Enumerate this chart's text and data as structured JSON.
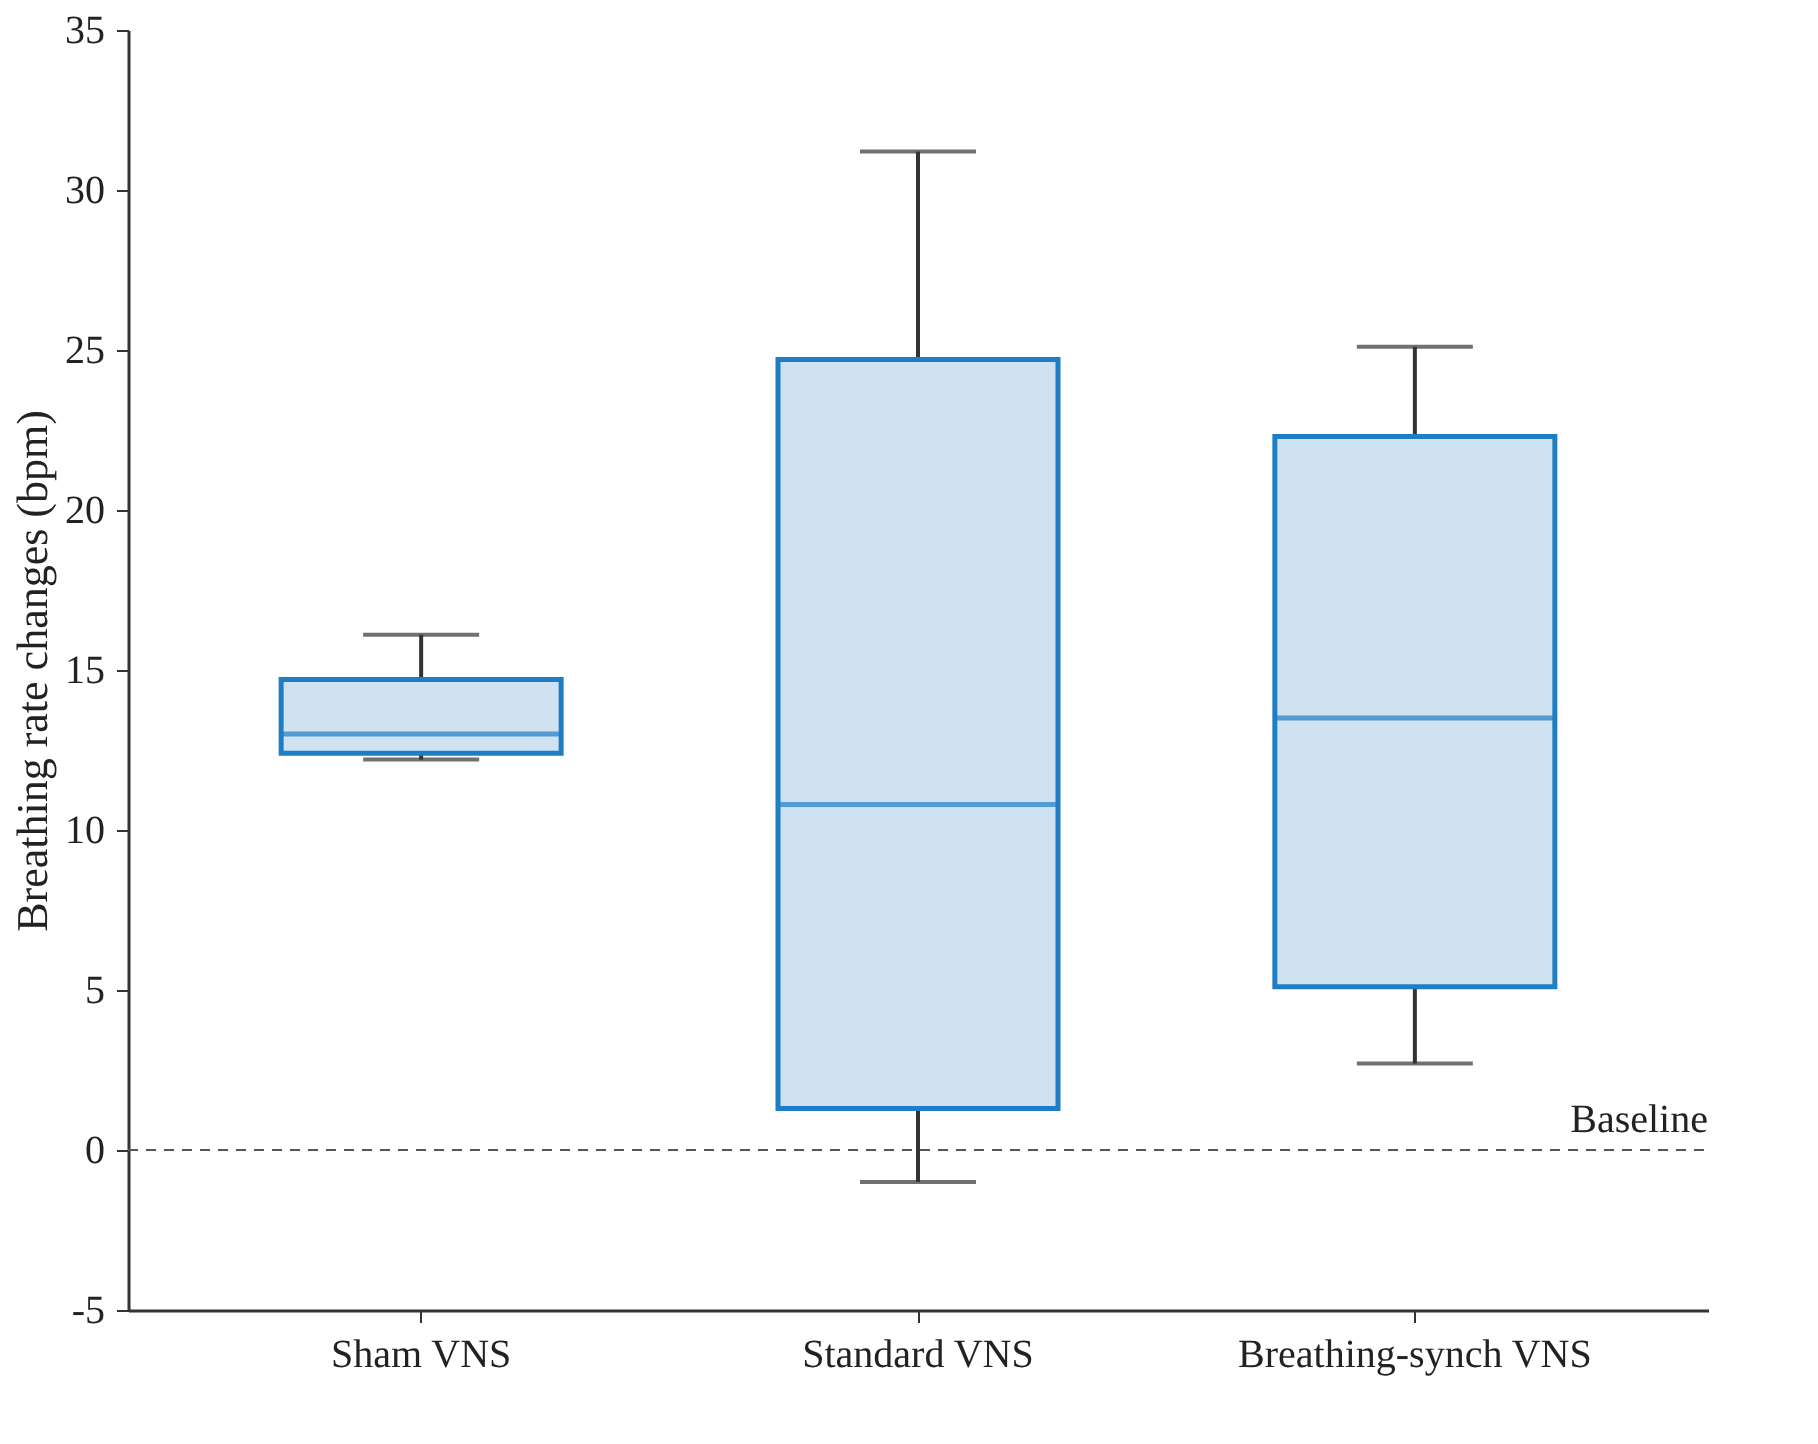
{
  "chart_data": {
    "type": "box",
    "ylabel": "Breathing rate changes (bpm)",
    "categories": [
      "Sham VNS",
      "Standard VNS",
      "Breathing-synch VNS"
    ],
    "series": [
      {
        "color": "#1f7dc4",
        "boxes": [
          {
            "low": 12.2,
            "q1": 12.4,
            "median": 13.0,
            "q3": 14.7,
            "high": 16.1
          },
          {
            "low": -1.0,
            "q1": 1.3,
            "median": 10.8,
            "q3": 24.7,
            "high": 31.2
          },
          {
            "low": 2.7,
            "q1": 5.1,
            "median": 13.5,
            "q3": 22.3,
            "high": 25.1
          }
        ]
      }
    ],
    "ylim": [
      -5,
      35
    ],
    "yticks": [
      -5,
      0,
      5,
      10,
      15,
      20,
      25,
      30,
      35
    ],
    "ref_lines": [
      {
        "axis": "y",
        "value": 0,
        "label": "Baseline",
        "color": "#555555",
        "line_style": "dashed"
      }
    ],
    "grid": false
  }
}
